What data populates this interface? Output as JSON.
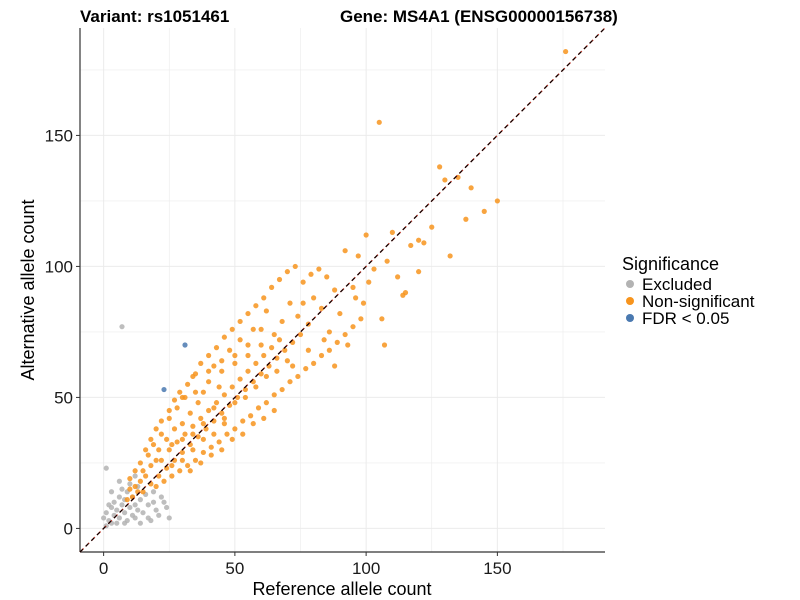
{
  "chart_data": {
    "type": "scatter",
    "title_left": "Variant: rs1051461",
    "title_right": "Gene: MS4A1 (ENSG00000156738)",
    "xlabel": "Reference allele count",
    "ylabel": "Alternative allele count",
    "xlim": [
      -9,
      191
    ],
    "ylim": [
      -9,
      191
    ],
    "xticks": [
      0,
      50,
      100,
      150
    ],
    "yticks": [
      0,
      50,
      100,
      150
    ],
    "grid": true,
    "legend_position": "right",
    "legend_title": "Significance",
    "colors": {
      "excluded": "#b3b3b3",
      "nonsig": "#f7941d",
      "fdr": "#4a79b0",
      "ref_line": "#c0392b",
      "fit_line": "#000000",
      "axis": "#333333",
      "grid": "#ebebeb"
    },
    "reference_line": {
      "slope": 1,
      "intercept": 0,
      "style": "dashed"
    },
    "series": [
      {
        "name": "Excluded",
        "color_key": "excluded",
        "points": [
          [
            7,
            77
          ],
          [
            1,
            23
          ],
          [
            0,
            4
          ],
          [
            1,
            6
          ],
          [
            2,
            3
          ],
          [
            3,
            8
          ],
          [
            4,
            5
          ],
          [
            4,
            10
          ],
          [
            5,
            2
          ],
          [
            5,
            7
          ],
          [
            6,
            12
          ],
          [
            6,
            4
          ],
          [
            7,
            9
          ],
          [
            7,
            15
          ],
          [
            8,
            6
          ],
          [
            8,
            11
          ],
          [
            9,
            3
          ],
          [
            9,
            14
          ],
          [
            10,
            8
          ],
          [
            10,
            17
          ],
          [
            11,
            5
          ],
          [
            11,
            12
          ],
          [
            12,
            9
          ],
          [
            12,
            20
          ],
          [
            13,
            7
          ],
          [
            14,
            11
          ],
          [
            14,
            2
          ],
          [
            15,
            6
          ],
          [
            16,
            13
          ],
          [
            17,
            9
          ],
          [
            18,
            3
          ],
          [
            19,
            10
          ],
          [
            20,
            7
          ],
          [
            21,
            5
          ],
          [
            22,
            12
          ],
          [
            24,
            8
          ],
          [
            25,
            4
          ],
          [
            17,
            4
          ],
          [
            3,
            2
          ],
          [
            2,
            9
          ],
          [
            6,
            18
          ],
          [
            3,
            14
          ],
          [
            13,
            16
          ],
          [
            19,
            14
          ],
          [
            23,
            10
          ],
          [
            1,
            1
          ],
          [
            8,
            2
          ],
          [
            12,
            4
          ]
        ]
      },
      {
        "name": "Non-significant",
        "color_key": "nonsig",
        "points": [
          [
            176,
            182
          ],
          [
            105,
            155
          ],
          [
            128,
            138
          ],
          [
            130,
            133
          ],
          [
            135,
            134
          ],
          [
            140,
            130
          ],
          [
            150,
            125
          ],
          [
            138,
            118
          ],
          [
            145,
            121
          ],
          [
            110,
            113
          ],
          [
            117,
            108
          ],
          [
            120,
            110
          ],
          [
            125,
            115
          ],
          [
            100,
            112
          ],
          [
            92,
            106
          ],
          [
            97,
            104
          ],
          [
            103,
            99
          ],
          [
            108,
            102
          ],
          [
            112,
            96
          ],
          [
            122,
            109
          ],
          [
            115,
            90
          ],
          [
            106,
            80
          ],
          [
            107,
            70
          ],
          [
            114,
            89
          ],
          [
            99,
            86
          ],
          [
            88,
            91
          ],
          [
            85,
            96
          ],
          [
            95,
            92
          ],
          [
            90,
            82
          ],
          [
            83,
            84
          ],
          [
            80,
            88
          ],
          [
            78,
            78
          ],
          [
            86,
            75
          ],
          [
            74,
            81
          ],
          [
            71,
            86
          ],
          [
            68,
            79
          ],
          [
            65,
            74
          ],
          [
            62,
            83
          ],
          [
            60,
            70
          ],
          [
            57,
            76
          ],
          [
            55,
            66
          ],
          [
            52,
            72
          ],
          [
            50,
            63
          ],
          [
            48,
            68
          ],
          [
            45,
            60
          ],
          [
            44,
            54
          ],
          [
            42,
            62
          ],
          [
            40,
            56
          ],
          [
            38,
            52
          ],
          [
            36,
            48
          ],
          [
            34,
            58
          ],
          [
            33,
            44
          ],
          [
            31,
            50
          ],
          [
            30,
            40
          ],
          [
            28,
            46
          ],
          [
            27,
            38
          ],
          [
            25,
            42
          ],
          [
            24,
            34
          ],
          [
            22,
            36
          ],
          [
            21,
            30
          ],
          [
            20,
            26
          ],
          [
            19,
            32
          ],
          [
            18,
            24
          ],
          [
            17,
            28
          ],
          [
            16,
            20
          ],
          [
            15,
            22
          ],
          [
            14,
            18
          ],
          [
            13,
            14
          ],
          [
            12,
            16
          ],
          [
            11,
            12
          ],
          [
            10,
            15
          ],
          [
            9,
            11
          ],
          [
            10,
            19
          ],
          [
            12,
            22
          ],
          [
            14,
            25
          ],
          [
            16,
            30
          ],
          [
            18,
            34
          ],
          [
            20,
            38
          ],
          [
            22,
            41
          ],
          [
            25,
            45
          ],
          [
            27,
            49
          ],
          [
            29,
            52
          ],
          [
            32,
            55
          ],
          [
            35,
            59
          ],
          [
            37,
            63
          ],
          [
            40,
            66
          ],
          [
            43,
            69
          ],
          [
            46,
            73
          ],
          [
            49,
            76
          ],
          [
            52,
            79
          ],
          [
            55,
            82
          ],
          [
            58,
            85
          ],
          [
            61,
            88
          ],
          [
            64,
            92
          ],
          [
            67,
            95
          ],
          [
            70,
            98
          ],
          [
            73,
            100
          ],
          [
            76,
            94
          ],
          [
            79,
            97
          ],
          [
            82,
            99
          ],
          [
            20,
            16
          ],
          [
            23,
            18
          ],
          [
            26,
            20
          ],
          [
            29,
            22
          ],
          [
            32,
            24
          ],
          [
            35,
            26
          ],
          [
            38,
            29
          ],
          [
            41,
            31
          ],
          [
            44,
            33
          ],
          [
            47,
            36
          ],
          [
            50,
            38
          ],
          [
            53,
            41
          ],
          [
            56,
            43
          ],
          [
            59,
            46
          ],
          [
            62,
            48
          ],
          [
            65,
            51
          ],
          [
            68,
            53
          ],
          [
            71,
            56
          ],
          [
            74,
            58
          ],
          [
            77,
            61
          ],
          [
            80,
            63
          ],
          [
            83,
            66
          ],
          [
            86,
            68
          ],
          [
            89,
            71
          ],
          [
            92,
            74
          ],
          [
            95,
            77
          ],
          [
            98,
            80
          ],
          [
            15,
            14
          ],
          [
            18,
            17
          ],
          [
            21,
            20
          ],
          [
            24,
            23
          ],
          [
            27,
            26
          ],
          [
            30,
            29
          ],
          [
            33,
            32
          ],
          [
            36,
            35
          ],
          [
            39,
            38
          ],
          [
            42,
            41
          ],
          [
            45,
            44
          ],
          [
            48,
            47
          ],
          [
            51,
            50
          ],
          [
            54,
            53
          ],
          [
            57,
            56
          ],
          [
            60,
            59
          ],
          [
            63,
            62
          ],
          [
            66,
            65
          ],
          [
            69,
            68
          ],
          [
            72,
            71
          ],
          [
            75,
            74
          ],
          [
            25,
            30
          ],
          [
            28,
            33
          ],
          [
            31,
            36
          ],
          [
            34,
            39
          ],
          [
            37,
            42
          ],
          [
            40,
            45
          ],
          [
            43,
            48
          ],
          [
            46,
            51
          ],
          [
            49,
            54
          ],
          [
            52,
            57
          ],
          [
            55,
            60
          ],
          [
            58,
            63
          ],
          [
            61,
            66
          ],
          [
            64,
            69
          ],
          [
            67,
            72
          ],
          [
            22,
            26
          ],
          [
            26,
            32
          ],
          [
            30,
            34
          ],
          [
            34,
            36
          ],
          [
            38,
            40
          ],
          [
            42,
            46
          ],
          [
            46,
            42
          ],
          [
            50,
            48
          ],
          [
            54,
            50
          ],
          [
            58,
            54
          ],
          [
            62,
            58
          ],
          [
            66,
            60
          ],
          [
            70,
            64
          ],
          [
            26,
            24
          ],
          [
            30,
            26
          ],
          [
            34,
            30
          ],
          [
            38,
            34
          ],
          [
            42,
            36
          ],
          [
            46,
            40
          ],
          [
            30,
            50
          ],
          [
            35,
            52
          ],
          [
            40,
            60
          ],
          [
            45,
            64
          ],
          [
            50,
            66
          ],
          [
            55,
            70
          ],
          [
            60,
            76
          ],
          [
            33,
            22
          ],
          [
            37,
            25
          ],
          [
            41,
            28
          ],
          [
            45,
            30
          ],
          [
            49,
            34
          ],
          [
            53,
            36
          ],
          [
            57,
            40
          ],
          [
            61,
            42
          ],
          [
            65,
            45
          ],
          [
            120,
            98
          ],
          [
            132,
            104
          ],
          [
            96,
            88
          ],
          [
            101,
            94
          ],
          [
            88,
            62
          ],
          [
            93,
            70
          ],
          [
            84,
            72
          ],
          [
            78,
            68
          ],
          [
            72,
            62
          ],
          [
            76,
            86
          ]
        ]
      },
      {
        "name": "FDR < 0.05",
        "color_key": "fdr",
        "points": [
          [
            31,
            70
          ],
          [
            23,
            53
          ]
        ]
      }
    ]
  }
}
